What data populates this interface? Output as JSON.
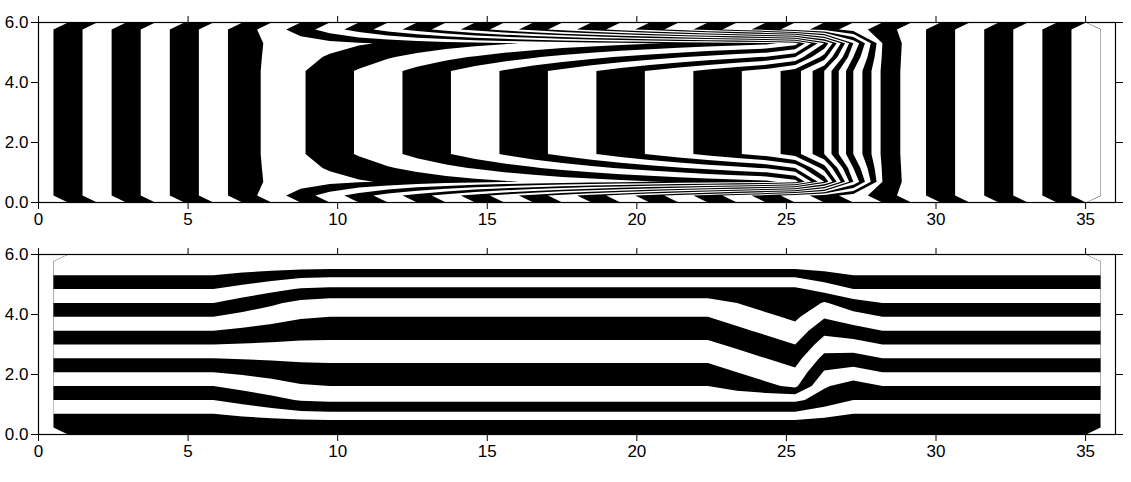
{
  "chart_data": [
    {
      "type": "contour",
      "x": [
        0.5,
        1.5,
        2.5,
        3.5,
        4.5,
        5.5,
        6.5,
        7.5,
        8.5,
        9.5,
        10.5,
        11.5,
        12.5,
        13.5,
        14.5,
        15.5,
        16.5,
        17.5,
        18.5,
        19.5,
        20.5,
        21.5,
        22.5,
        23.5,
        24.5,
        25.5,
        26.5,
        27.5,
        28.5,
        29.5,
        30.5,
        31.5,
        32.5,
        33.5,
        34.5,
        35.5
      ],
      "y": [
        0,
        0.5,
        1,
        1.5,
        2,
        2.5,
        3,
        3.5,
        4,
        4.5,
        5,
        5.5,
        6
      ],
      "z": [
        [
          0.5,
          1.5,
          2.5,
          3.5,
          4.5,
          5.5,
          6.5,
          7.5,
          8.5,
          9.5,
          10.5,
          11.5,
          12.5,
          13.5,
          14.5,
          15.5,
          16.5,
          17.5,
          18.5,
          19.5,
          20.5,
          21.5,
          22.5,
          23.5,
          24.5,
          25.5,
          26.5,
          27.5,
          28.5,
          29.5,
          30.5,
          31.5,
          32.5,
          33.5,
          34.5,
          35.5
        ],
        [
          0.5,
          1.5,
          2.5,
          3.5,
          4.5,
          5.5,
          6.5,
          7.2,
          7.5,
          7.7,
          7.9,
          8.1,
          8.3,
          8.5,
          8.7,
          8.9,
          9.1,
          9.3,
          9.5,
          9.7,
          9.9,
          10.1,
          10.3,
          10.5,
          10.7,
          11.5,
          16,
          23,
          28,
          29.5,
          30.5,
          31.5,
          32.5,
          33.5,
          34.5,
          35.5
        ],
        [
          0.5,
          1.5,
          2.5,
          3.5,
          4.5,
          5.5,
          6.5,
          7.25,
          7.7,
          8.1,
          8.5,
          8.9,
          9.3,
          9.7,
          10.1,
          10.5,
          10.9,
          11.3,
          11.7,
          12.1,
          12.5,
          12.9,
          13.3,
          13.7,
          14.1,
          15,
          18.5,
          24,
          28.1,
          29.5,
          30.5,
          31.5,
          32.5,
          33.5,
          34.5,
          35.5
        ],
        [
          0.5,
          1.5,
          2.5,
          3.5,
          4.5,
          5.5,
          6.5,
          7.3,
          7.9,
          8.5,
          9.1,
          9.7,
          10.3,
          10.9,
          11.5,
          12.1,
          12.7,
          13.3,
          13.9,
          14.5,
          15.1,
          15.7,
          16.3,
          16.9,
          17.5,
          18.5,
          21,
          25,
          28.2,
          29.5,
          30.5,
          31.5,
          32.5,
          33.5,
          34.5,
          35.5
        ],
        [
          0.5,
          1.5,
          2.5,
          3.5,
          4.5,
          5.5,
          6.5,
          7.3,
          7.9,
          8.5,
          9.1,
          9.7,
          10.3,
          10.9,
          11.5,
          12.1,
          12.7,
          13.3,
          13.9,
          14.5,
          15.1,
          15.7,
          16.3,
          16.9,
          17.5,
          18.5,
          21,
          25,
          28.2,
          29.5,
          30.5,
          31.5,
          32.5,
          33.5,
          34.5,
          35.5
        ],
        [
          0.5,
          1.5,
          2.5,
          3.5,
          4.5,
          5.5,
          6.5,
          7.3,
          7.9,
          8.5,
          9.1,
          9.7,
          10.3,
          10.9,
          11.5,
          12.1,
          12.7,
          13.3,
          13.9,
          14.5,
          15.1,
          15.7,
          16.3,
          16.9,
          17.5,
          18.5,
          21,
          25,
          28.2,
          29.5,
          30.5,
          31.5,
          32.5,
          33.5,
          34.5,
          35.5
        ],
        [
          0.5,
          1.5,
          2.5,
          3.5,
          4.5,
          5.5,
          6.5,
          7.3,
          7.9,
          8.5,
          9.1,
          9.7,
          10.3,
          10.9,
          11.5,
          12.1,
          12.7,
          13.3,
          13.9,
          14.5,
          15.1,
          15.7,
          16.3,
          16.9,
          17.5,
          18.5,
          21,
          25,
          28.2,
          29.5,
          30.5,
          31.5,
          32.5,
          33.5,
          34.5,
          35.5
        ],
        [
          0.5,
          1.5,
          2.5,
          3.5,
          4.5,
          5.5,
          6.5,
          7.3,
          7.9,
          8.5,
          9.1,
          9.7,
          10.3,
          10.9,
          11.5,
          12.1,
          12.7,
          13.3,
          13.9,
          14.5,
          15.1,
          15.7,
          16.3,
          16.9,
          17.5,
          18.5,
          21,
          25,
          28.2,
          29.5,
          30.5,
          31.5,
          32.5,
          33.5,
          34.5,
          35.5
        ],
        [
          0.5,
          1.5,
          2.5,
          3.5,
          4.5,
          5.5,
          6.5,
          7.3,
          7.9,
          8.5,
          9.1,
          9.7,
          10.3,
          10.9,
          11.5,
          12.1,
          12.7,
          13.3,
          13.9,
          14.5,
          15.1,
          15.7,
          16.3,
          16.9,
          17.5,
          18.5,
          21,
          25,
          28.2,
          29.5,
          30.5,
          31.5,
          32.5,
          33.5,
          34.5,
          35.5
        ],
        [
          0.5,
          1.5,
          2.5,
          3.5,
          4.5,
          5.5,
          6.5,
          7.3,
          7.9,
          8.5,
          9.1,
          9.7,
          10.3,
          10.9,
          11.5,
          12.1,
          12.7,
          13.3,
          13.9,
          14.5,
          15.1,
          15.7,
          16.3,
          16.9,
          17.5,
          18.5,
          21,
          25,
          28.2,
          29.5,
          30.5,
          31.5,
          32.5,
          33.5,
          34.5,
          35.5
        ],
        [
          0.5,
          1.5,
          2.5,
          3.5,
          4.5,
          5.5,
          6.5,
          7.25,
          7.7,
          8.1,
          8.5,
          8.9,
          9.3,
          9.7,
          10.1,
          10.5,
          10.9,
          11.3,
          11.7,
          12.1,
          12.5,
          12.9,
          13.3,
          13.7,
          14.1,
          15,
          18.5,
          24,
          28.1,
          29.5,
          30.5,
          31.5,
          32.5,
          33.5,
          34.5,
          35.5
        ],
        [
          0.5,
          1.5,
          2.5,
          3.5,
          4.5,
          5.5,
          6.5,
          7.2,
          7.5,
          7.7,
          7.9,
          8.1,
          8.3,
          8.5,
          8.7,
          8.9,
          9.1,
          9.3,
          9.5,
          9.7,
          9.9,
          10.1,
          10.3,
          10.5,
          10.7,
          11.5,
          16,
          23,
          28,
          29.5,
          30.5,
          31.5,
          32.5,
          33.5,
          34.5,
          35.5
        ],
        [
          0.5,
          1.5,
          2.5,
          3.5,
          4.5,
          5.5,
          6.5,
          7.5,
          8.5,
          9.5,
          10.5,
          11.5,
          12.5,
          13.5,
          14.5,
          15.5,
          16.5,
          17.5,
          18.5,
          19.5,
          20.5,
          21.5,
          22.5,
          23.5,
          24.5,
          25.5,
          26.5,
          27.5,
          28.5,
          29.5,
          30.5,
          31.5,
          32.5,
          33.5,
          34.5,
          35.5
        ]
      ],
      "levels": [
        0,
        1,
        2,
        3,
        4,
        5,
        6,
        7,
        8,
        9,
        10,
        11,
        12,
        13,
        14,
        15,
        16,
        17,
        18,
        19,
        20,
        21,
        22,
        23,
        24,
        25,
        26,
        27,
        28,
        29,
        30,
        31,
        32,
        33,
        34,
        35
      ],
      "colors": [
        "#000000",
        "#ffffff",
        "#000000",
        "#ffffff",
        "#000000",
        "#ffffff",
        "#000000",
        "#ffffff",
        "#000000",
        "#ffffff",
        "#000000",
        "#ffffff",
        "#000000",
        "#ffffff",
        "#000000",
        "#ffffff",
        "#000000",
        "#ffffff",
        "#000000",
        "#ffffff",
        "#000000",
        "#ffffff",
        "#000000",
        "#ffffff",
        "#000000",
        "#ffffff",
        "#000000",
        "#ffffff",
        "#000000",
        "#ffffff",
        "#000000",
        "#ffffff",
        "#000000",
        "#ffffff",
        "#000000",
        "#ffffff"
      ],
      "xlim": [
        0,
        36
      ],
      "xticks": [
        0,
        5,
        10,
        15,
        20,
        25,
        30,
        35
      ],
      "ylim": [
        0,
        6
      ],
      "yticks": [
        0,
        2,
        4,
        6
      ]
    },
    {
      "type": "contour",
      "x": [
        0.5,
        1.5,
        2.5,
        3.5,
        4.5,
        5.5,
        6.5,
        7.5,
        8.5,
        9.5,
        10.5,
        11.5,
        12.5,
        13.5,
        14.5,
        15.5,
        16.5,
        17.5,
        18.5,
        19.5,
        20.5,
        21.5,
        22.5,
        23.5,
        24.5,
        25.5,
        26.5,
        27.5,
        28.5,
        29.5,
        30.5,
        31.5,
        32.5,
        33.5,
        34.5,
        35.5
      ],
      "y": [
        0,
        0.5,
        1,
        1.5,
        2,
        2.5,
        3,
        3.5,
        4,
        4.5,
        5,
        5.5,
        6
      ],
      "z": [
        [
          0,
          0,
          0,
          0,
          0,
          0,
          0,
          0,
          0,
          0,
          0,
          0,
          0,
          0,
          0,
          0,
          0,
          0,
          0,
          0,
          0,
          0,
          0,
          0,
          0,
          0,
          0,
          0,
          0,
          0,
          0,
          0,
          0,
          0,
          0,
          0
        ],
        [
          0.5,
          0.5,
          0.5,
          0.5,
          0.5,
          0.5,
          0.62,
          0.74,
          0.86,
          0.9,
          0.9,
          0.9,
          0.9,
          0.9,
          0.9,
          0.9,
          0.9,
          0.9,
          0.9,
          0.9,
          0.9,
          0.9,
          0.9,
          0.9,
          0.9,
          0.9,
          0.7,
          0.5,
          0.5,
          0.5,
          0.5,
          0.5,
          0.5,
          0.5,
          0.5,
          0.5
        ],
        [
          1,
          1,
          1,
          1,
          1,
          1,
          1.18,
          1.36,
          1.54,
          1.6,
          1.6,
          1.6,
          1.6,
          1.6,
          1.6,
          1.6,
          1.6,
          1.6,
          1.6,
          1.6,
          1.6,
          1.6,
          1.6,
          1.6,
          1.6,
          1.6,
          1.3,
          1,
          1,
          1,
          1,
          1,
          1,
          1,
          1,
          1
        ],
        [
          1.5,
          1.5,
          1.5,
          1.5,
          1.5,
          1.5,
          1.65,
          1.8,
          1.95,
          2,
          2,
          2,
          2,
          2,
          2,
          2,
          2,
          2,
          2,
          2,
          2,
          2,
          2,
          2.2,
          2.4,
          2.6,
          1.55,
          1.3,
          1.5,
          1.5,
          1.5,
          1.5,
          1.5,
          1.5,
          1.5,
          1.5
        ],
        [
          2,
          2,
          2,
          2,
          2,
          2,
          2.09,
          2.18,
          2.27,
          2.3,
          2.3,
          2.3,
          2.3,
          2.3,
          2.3,
          2.3,
          2.3,
          2.3,
          2.3,
          2.3,
          2.3,
          2.3,
          2.3,
          2.5,
          2.7,
          2.9,
          1.95,
          1.8,
          2,
          2,
          2,
          2,
          2,
          2,
          2,
          2
        ],
        [
          2.5,
          2.5,
          2.5,
          2.5,
          2.5,
          2.5,
          2.53,
          2.56,
          2.59,
          2.6,
          2.6,
          2.6,
          2.6,
          2.6,
          2.6,
          2.6,
          2.6,
          2.6,
          2.6,
          2.6,
          2.6,
          2.6,
          2.6,
          2.8,
          3,
          3.2,
          2.35,
          2.3,
          2.5,
          2.5,
          2.5,
          2.5,
          2.5,
          2.5,
          2.5,
          2.5
        ],
        [
          3,
          3,
          3,
          3,
          3,
          3,
          2.97,
          2.94,
          2.91,
          2.9,
          2.9,
          2.9,
          2.9,
          2.9,
          2.9,
          2.9,
          2.9,
          2.9,
          2.9,
          2.9,
          2.9,
          2.9,
          2.9,
          3.1,
          3.3,
          3.5,
          2.75,
          2.8,
          3,
          3,
          3,
          3,
          3,
          3,
          3,
          3
        ],
        [
          3.5,
          3.5,
          3.5,
          3.5,
          3.5,
          3.5,
          3.41,
          3.32,
          3.23,
          3.2,
          3.2,
          3.2,
          3.2,
          3.2,
          3.2,
          3.2,
          3.2,
          3.2,
          3.2,
          3.2,
          3.2,
          3.2,
          3.2,
          3.4,
          3.6,
          3.8,
          3.15,
          3.3,
          3.5,
          3.5,
          3.5,
          3.5,
          3.5,
          3.5,
          3.5,
          3.5
        ],
        [
          4,
          4,
          4,
          4,
          4,
          4,
          3.85,
          3.7,
          3.55,
          3.5,
          3.5,
          3.5,
          3.5,
          3.5,
          3.5,
          3.5,
          3.5,
          3.5,
          3.5,
          3.5,
          3.5,
          3.5,
          3.5,
          3.7,
          3.9,
          4.1,
          3.55,
          3.8,
          4,
          4,
          4,
          4,
          4,
          4,
          4,
          4
        ],
        [
          4.5,
          4.5,
          4.5,
          4.5,
          4.5,
          4.5,
          4.29,
          4.08,
          3.87,
          3.8,
          3.8,
          3.8,
          3.8,
          3.8,
          3.8,
          3.8,
          3.8,
          3.8,
          3.8,
          3.8,
          3.8,
          3.8,
          3.8,
          4,
          4.2,
          4.4,
          3.95,
          4.3,
          4.5,
          4.5,
          4.5,
          4.5,
          4.5,
          4.5,
          4.5,
          4.5
        ],
        [
          5,
          5,
          5,
          5,
          5,
          5,
          4.82,
          4.64,
          4.46,
          4.4,
          4.4,
          4.4,
          4.4,
          4.4,
          4.4,
          4.4,
          4.4,
          4.4,
          4.4,
          4.4,
          4.4,
          4.4,
          4.4,
          4.4,
          4.4,
          4.4,
          4.7,
          5,
          5,
          5,
          5,
          5,
          5,
          5,
          5,
          5
        ],
        [
          5.5,
          5.5,
          5.5,
          5.5,
          5.5,
          5.5,
          5.38,
          5.26,
          5.14,
          5.1,
          5.1,
          5.1,
          5.1,
          5.1,
          5.1,
          5.1,
          5.1,
          5.1,
          5.1,
          5.1,
          5.1,
          5.1,
          5.1,
          5.1,
          5.1,
          5.1,
          5.3,
          5.5,
          5.5,
          5.5,
          5.5,
          5.5,
          5.5,
          5.5,
          5.5,
          5.5
        ],
        [
          6,
          6,
          6,
          6,
          6,
          6,
          6,
          6,
          6,
          6,
          6,
          6,
          6,
          6,
          6,
          6,
          6,
          6,
          6,
          6,
          6,
          6,
          6,
          6,
          6,
          6,
          6,
          6,
          6,
          6,
          6,
          6,
          6,
          6,
          6,
          6
        ]
      ],
      "levels": [
        0,
        0.5,
        1,
        1.5,
        2,
        2.5,
        3,
        3.5,
        4,
        4.5,
        5,
        5.5
      ],
      "colors": [
        "#000000",
        "#ffffff",
        "#000000",
        "#ffffff",
        "#000000",
        "#ffffff",
        "#000000",
        "#ffffff",
        "#000000",
        "#ffffff",
        "#000000",
        "#ffffff"
      ],
      "xlim": [
        0,
        36
      ],
      "xticks": [
        0,
        5,
        10,
        15,
        20,
        25,
        30,
        35
      ],
      "ylim": [
        0,
        6
      ],
      "yticks": [
        0,
        2,
        4,
        6
      ]
    }
  ]
}
